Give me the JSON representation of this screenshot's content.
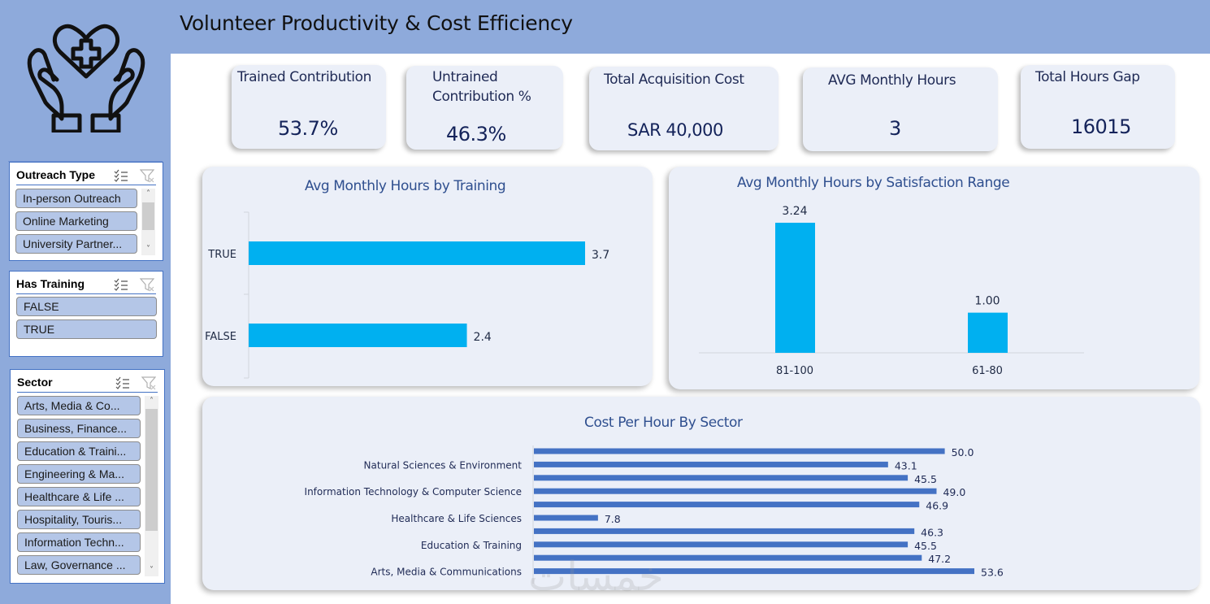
{
  "header": {
    "title": "Volunteer Productivity & Cost Efficiency"
  },
  "logo": {
    "icon": "hands-holding-heart-medical-icon"
  },
  "slicers": {
    "outreach_type": {
      "title": "Outreach Type",
      "items": [
        "In-person Outreach",
        "Online Marketing",
        "University Partner..."
      ]
    },
    "has_training": {
      "title": "Has Training",
      "items": [
        "FALSE",
        "TRUE"
      ]
    },
    "sector": {
      "title": "Sector",
      "items": [
        "Arts, Media & Co...",
        "Business, Finance...",
        "Education & Traini...",
        "Engineering & Ma...",
        "Healthcare & Life ...",
        "Hospitality, Touris...",
        "Information Techn...",
        "Law, Governance ..."
      ]
    },
    "multi_select_icon": "multi-select-icon",
    "clear_filter_icon": "clear-filter-icon"
  },
  "kpis": [
    {
      "label": "Trained Contribution",
      "value": "53.7%"
    },
    {
      "label": "Untrained Contribution %",
      "value": "46.3%"
    },
    {
      "label": "Total Acquisition Cost",
      "value": "SAR 40,000"
    },
    {
      "label": "AVG Monthly Hours",
      "value": "3"
    },
    {
      "label": "Total Hours Gap",
      "value": "16015"
    }
  ],
  "colors": {
    "bar_cyan": "#00b0f0",
    "bar_blue": "#4472c4",
    "sidebar": "#8eaadb",
    "panel": "#ebeff8"
  },
  "watermark": "خمسات",
  "chart_data": [
    {
      "type": "bar",
      "orientation": "horizontal",
      "title": "Avg Monthly Hours by Training",
      "categories": [
        "TRUE",
        "FALSE"
      ],
      "values": [
        3.7,
        2.4
      ],
      "data_labels": [
        "3.7",
        "2.4"
      ],
      "xlabel": "",
      "ylabel": "",
      "xlim": [
        0,
        4.5
      ],
      "grid": false,
      "legend": "none"
    },
    {
      "type": "bar",
      "orientation": "vertical",
      "title": "Avg Monthly Hours by Satisfaction Range",
      "categories": [
        "81-100",
        "61-80"
      ],
      "values": [
        3.24,
        1.0
      ],
      "data_labels": [
        "3.24",
        "1.00"
      ],
      "xlabel": "",
      "ylabel": "",
      "ylim": [
        0,
        3.6
      ],
      "grid": false,
      "legend": "none"
    },
    {
      "type": "bar",
      "orientation": "horizontal",
      "title": "Cost Per Hour By Sector",
      "categories": [
        "",
        "Natural Sciences & Environment",
        "",
        "Information Technology & Computer Science",
        "",
        "Healthcare & Life Sciences",
        "",
        "Education & Training",
        "",
        "Arts, Media & Communications"
      ],
      "values": [
        50.0,
        43.1,
        45.5,
        49.0,
        46.9,
        7.8,
        46.3,
        45.5,
        47.2,
        53.6
      ],
      "data_labels": [
        "50.0",
        "43.1",
        "45.5",
        "49.0",
        "46.9",
        "7.8",
        "46.3",
        "45.5",
        "47.2",
        "53.6"
      ],
      "xlabel": "",
      "ylabel": "",
      "xlim": [
        0,
        55
      ],
      "grid": false,
      "legend": "none"
    }
  ]
}
